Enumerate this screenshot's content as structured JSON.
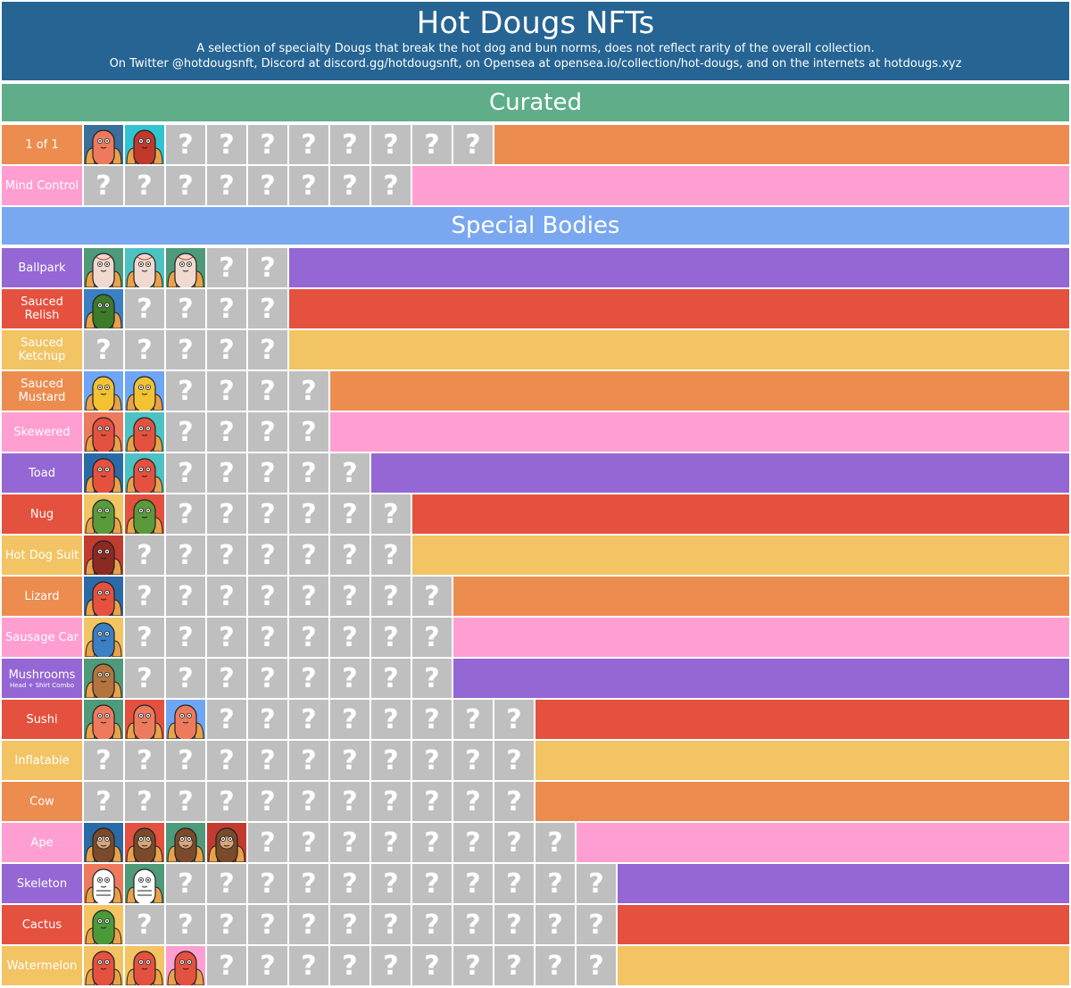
{
  "header": {
    "title": "Hot Dougs NFTs",
    "subtitle1": "A selection of specialty Dougs that break the hot dog and bun norms, does not reflect rarity of the overall collection.",
    "subtitle2": "On Twitter @hotdougsnft, Discord at discord.gg/hotdougsnft, on Opensea at opensea.io/collection/hot-dougs, and on the internets at hotdougs.xyz"
  },
  "colors": {
    "header": "#266494",
    "curated": "#5fae89",
    "special": "#7aa8f0",
    "orange": "#ed8c4f",
    "pink": "#ff9fd1",
    "purple": "#9467d4",
    "red": "#e5513f",
    "yellow": "#f2c464",
    "unknown": "#bfbfbf"
  },
  "unknown_glyph": "?",
  "sections": [
    {
      "title": "Curated",
      "color": "curated",
      "rows": [
        {
          "label": "1 of 1",
          "color": "orange",
          "known": [
            {
              "name": "one-of-one-nft-1",
              "bg": "#3a6f9a",
              "body": "#ee7a5e",
              "kind": "dog"
            },
            {
              "name": "one-of-one-nft-2",
              "bg": "#31c4d0",
              "body": "#c0392b",
              "kind": "dog"
            }
          ],
          "unknown": 8
        },
        {
          "label": "Mind Control",
          "color": "pink",
          "known": [],
          "unknown": 8
        }
      ]
    },
    {
      "title": "Special Bodies",
      "color": "special",
      "rows": [
        {
          "label": "Ballpark",
          "color": "purple",
          "known": [
            {
              "name": "ballpark-nft-1",
              "bg": "#4e9a7a",
              "body": "#f0d9cf",
              "kind": "ball"
            },
            {
              "name": "ballpark-nft-2",
              "bg": "#4ec2c2",
              "body": "#f0d9cf",
              "kind": "ball"
            },
            {
              "name": "ballpark-nft-3",
              "bg": "#4e9a7a",
              "body": "#f0d9cf",
              "kind": "ball"
            }
          ],
          "unknown": 2
        },
        {
          "label": "Sauced Relish",
          "color": "red",
          "known": [
            {
              "name": "sauced-relish-nft-1",
              "bg": "#3b7fc4",
              "body": "#3d7a2a",
              "kind": "dog"
            }
          ],
          "unknown": 4
        },
        {
          "label": "Sauced Ketchup",
          "color": "yellow",
          "known": [],
          "unknown": 5
        },
        {
          "label": "Sauced Mustard",
          "color": "orange",
          "known": [
            {
              "name": "sauced-mustard-nft-1",
              "bg": "#6ea6f5",
              "body": "#f2c233",
              "kind": "dog"
            },
            {
              "name": "sauced-mustard-nft-2",
              "bg": "#6ea6f5",
              "body": "#f2c233",
              "kind": "dog"
            }
          ],
          "unknown": 4
        },
        {
          "label": "Skewered",
          "color": "pink",
          "known": [
            {
              "name": "skewered-nft-1",
              "bg": "#ee7a5e",
              "body": "#e5513f",
              "kind": "dog"
            },
            {
              "name": "skewered-nft-2",
              "bg": "#4ec2c2",
              "body": "#e5513f",
              "kind": "dog"
            }
          ],
          "unknown": 4
        },
        {
          "label": "Toad",
          "color": "purple",
          "known": [
            {
              "name": "toad-nft-1",
              "bg": "#2a6aa6",
              "body": "#e5513f",
              "kind": "dog"
            },
            {
              "name": "toad-nft-2",
              "bg": "#4ec2c2",
              "body": "#e5513f",
              "kind": "dog"
            }
          ],
          "unknown": 5
        },
        {
          "label": "Nug",
          "color": "red",
          "known": [
            {
              "name": "nug-nft-1",
              "bg": "#f2c464",
              "body": "#5a9a3a",
              "kind": "dog"
            },
            {
              "name": "nug-nft-2",
              "bg": "#e5513f",
              "body": "#5a9a3a",
              "kind": "dog"
            }
          ],
          "unknown": 6
        },
        {
          "label": "Hot Dog Suit",
          "color": "yellow",
          "known": [
            {
              "name": "hot-dog-suit-nft-1",
              "bg": "#c23b2f",
              "body": "#8a2a22",
              "kind": "dog"
            }
          ],
          "unknown": 7
        },
        {
          "label": "Lizard",
          "color": "orange",
          "known": [
            {
              "name": "lizard-nft-1",
              "bg": "#2a6aa6",
              "body": "#e5513f",
              "kind": "dog"
            }
          ],
          "unknown": 8
        },
        {
          "label": "Sausage Car",
          "color": "pink",
          "known": [
            {
              "name": "sausage-car-nft-1",
              "bg": "#f2c464",
              "body": "#3b7fc4",
              "kind": "dog"
            }
          ],
          "unknown": 8
        },
        {
          "label": "Mushrooms",
          "sub": "Head + Shirt Combo",
          "color": "purple",
          "known": [
            {
              "name": "mushrooms-nft-1",
              "bg": "#4e9a7a",
              "body": "#b3743f",
              "kind": "dog"
            }
          ],
          "unknown": 8
        },
        {
          "label": "Sushi",
          "color": "red",
          "known": [
            {
              "name": "sushi-nft-1",
              "bg": "#4e9a7a",
              "body": "#ee7a5e",
              "kind": "dog"
            },
            {
              "name": "sushi-nft-2",
              "bg": "#e5513f",
              "body": "#ee7a5e",
              "kind": "dog"
            },
            {
              "name": "sushi-nft-3",
              "bg": "#6ea6f5",
              "body": "#ee7a5e",
              "kind": "dog"
            }
          ],
          "unknown": 8
        },
        {
          "label": "Inflatable",
          "color": "yellow",
          "known": [],
          "unknown": 11
        },
        {
          "label": "Cow",
          "color": "orange",
          "known": [],
          "unknown": 11
        },
        {
          "label": "Ape",
          "color": "pink",
          "known": [
            {
              "name": "ape-nft-1",
              "bg": "#2a6aa6",
              "body": "#7a4a2a",
              "kind": "ape"
            },
            {
              "name": "ape-nft-2",
              "bg": "#e5513f",
              "body": "#7a4a2a",
              "kind": "ape"
            },
            {
              "name": "ape-nft-3",
              "bg": "#4e9a7a",
              "body": "#7a4a2a",
              "kind": "ape"
            },
            {
              "name": "ape-nft-4",
              "bg": "#c23b2f",
              "body": "#7a4a2a",
              "kind": "ape"
            }
          ],
          "unknown": 8
        },
        {
          "label": "Skeleton",
          "color": "purple",
          "known": [
            {
              "name": "skeleton-nft-1",
              "bg": "#ee7a5e",
              "body": "#ffffff",
              "kind": "skel"
            },
            {
              "name": "skeleton-nft-2",
              "bg": "#4e9a7a",
              "body": "#ffffff",
              "kind": "skel"
            }
          ],
          "unknown": 11
        },
        {
          "label": "Cactus",
          "color": "red",
          "known": [
            {
              "name": "cactus-nft-1",
              "bg": "#f2c464",
              "body": "#4a9a3a",
              "kind": "dog"
            }
          ],
          "unknown": 12
        },
        {
          "label": "Watermelon",
          "color": "yellow",
          "known": [
            {
              "name": "watermelon-nft-1",
              "bg": "#f2c464",
              "body": "#e5513f",
              "kind": "dog"
            },
            {
              "name": "watermelon-nft-2",
              "bg": "#f2c464",
              "body": "#e5513f",
              "kind": "dog"
            },
            {
              "name": "watermelon-nft-3",
              "bg": "#ff9fd1",
              "body": "#e5513f",
              "kind": "dog"
            }
          ],
          "unknown": 10
        }
      ]
    }
  ]
}
